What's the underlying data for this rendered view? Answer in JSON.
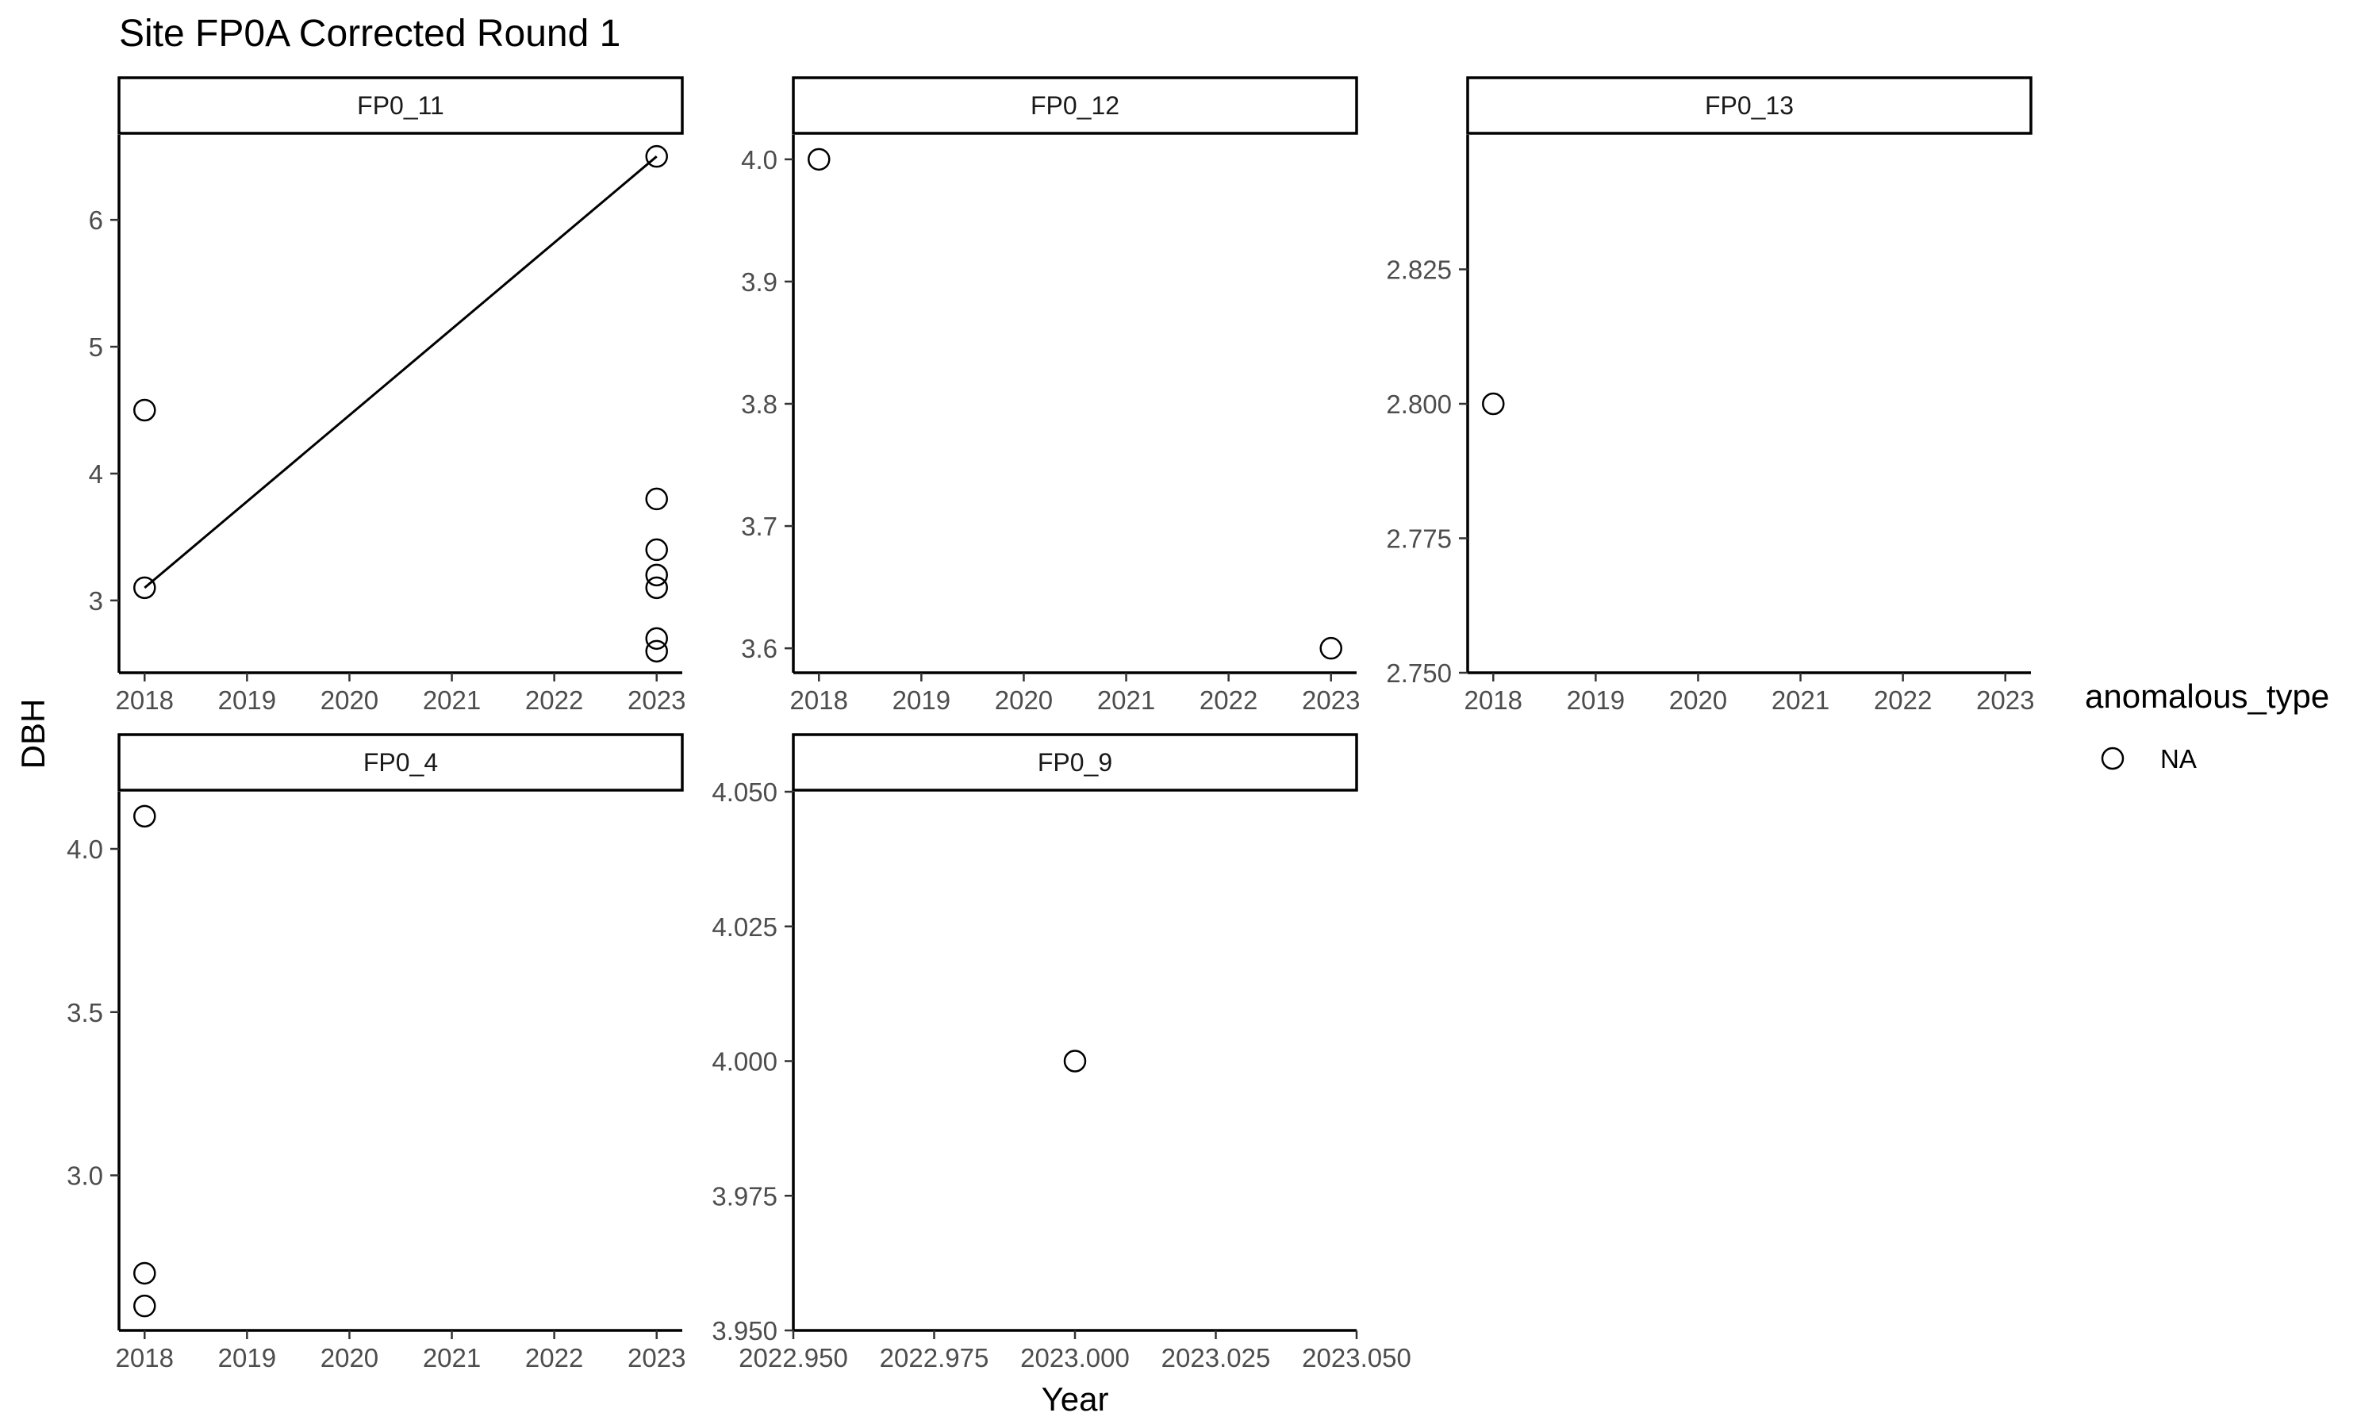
{
  "chart_data": {
    "type": "scatter",
    "title": "Site FP0A Corrected Round 1",
    "xlabel": "Year",
    "ylabel": "DBH",
    "legend": {
      "title": "anomalous_type",
      "placement": "right",
      "entries": [
        {
          "label": "NA",
          "marker": "open-circle"
        }
      ]
    },
    "facets": [
      {
        "name": "FP0_11",
        "xlim": [
          2017.75,
          2023.25
        ],
        "ylim": [
          2.43,
          6.67
        ],
        "x_ticks": [
          2018,
          2019,
          2020,
          2021,
          2022,
          2023
        ],
        "x_tick_labels": [
          "2018",
          "2019",
          "2020",
          "2021",
          "2022",
          "2023"
        ],
        "y_ticks": [
          3,
          4,
          5,
          6
        ],
        "y_tick_labels": [
          "3",
          "4",
          "5",
          "6"
        ],
        "points": [
          {
            "x": 2018,
            "y": 4.5
          },
          {
            "x": 2018,
            "y": 3.1
          },
          {
            "x": 2023,
            "y": 6.5
          },
          {
            "x": 2023,
            "y": 3.8
          },
          {
            "x": 2023,
            "y": 3.4
          },
          {
            "x": 2023,
            "y": 3.2
          },
          {
            "x": 2023,
            "y": 3.1
          },
          {
            "x": 2023,
            "y": 2.7
          },
          {
            "x": 2023,
            "y": 2.6
          }
        ],
        "lines": [
          {
            "x": [
              2018,
              2023
            ],
            "y": [
              3.1,
              6.5
            ]
          }
        ]
      },
      {
        "name": "FP0_12",
        "xlim": [
          2017.75,
          2023.25
        ],
        "ylim": [
          3.58,
          4.02
        ],
        "x_ticks": [
          2018,
          2019,
          2020,
          2021,
          2022,
          2023
        ],
        "x_tick_labels": [
          "2018",
          "2019",
          "2020",
          "2021",
          "2022",
          "2023"
        ],
        "y_ticks": [
          3.6,
          3.7,
          3.8,
          3.9,
          4.0
        ],
        "y_tick_labels": [
          "3.6",
          "3.7",
          "3.8",
          "3.9",
          "4.0"
        ],
        "points": [
          {
            "x": 2018,
            "y": 4.0
          },
          {
            "x": 2023,
            "y": 3.6
          }
        ],
        "lines": []
      },
      {
        "name": "FP0_13",
        "xlim": [
          2017.75,
          2023.25
        ],
        "ylim": [
          2.75,
          2.85
        ],
        "x_ticks": [
          2018,
          2019,
          2020,
          2021,
          2022,
          2023
        ],
        "x_tick_labels": [
          "2018",
          "2019",
          "2020",
          "2021",
          "2022",
          "2023"
        ],
        "y_ticks": [
          2.75,
          2.775,
          2.8,
          2.825
        ],
        "y_tick_labels": [
          "2.750",
          "2.775",
          "2.800",
          "2.825"
        ],
        "points": [
          {
            "x": 2018,
            "y": 2.8
          }
        ],
        "lines": []
      },
      {
        "name": "FP0_4",
        "xlim": [
          2017.75,
          2023.25
        ],
        "ylim": [
          2.525,
          4.175
        ],
        "x_ticks": [
          2018,
          2019,
          2020,
          2021,
          2022,
          2023
        ],
        "x_tick_labels": [
          "2018",
          "2019",
          "2020",
          "2021",
          "2022",
          "2023"
        ],
        "y_ticks": [
          3.0,
          3.5,
          4.0
        ],
        "y_tick_labels": [
          "3.0",
          "3.5",
          "4.0"
        ],
        "points": [
          {
            "x": 2018,
            "y": 4.1
          },
          {
            "x": 2018,
            "y": 2.7
          },
          {
            "x": 2018,
            "y": 2.6
          }
        ],
        "lines": []
      },
      {
        "name": "FP0_9",
        "xlim": [
          2022.95,
          2023.05
        ],
        "ylim": [
          3.95,
          4.05
        ],
        "x_ticks": [
          2022.95,
          2022.975,
          2023.0,
          2023.025,
          2023.05
        ],
        "x_tick_labels": [
          "2022.950",
          "2022.975",
          "2023.000",
          "2023.025",
          "2023.050"
        ],
        "y_ticks": [
          3.95,
          3.975,
          4.0,
          4.025,
          4.05
        ],
        "y_tick_labels": [
          "3.950",
          "3.975",
          "4.000",
          "4.025",
          "4.050"
        ],
        "points": [
          {
            "x": 2023.0,
            "y": 4.0
          }
        ],
        "lines": []
      }
    ]
  }
}
